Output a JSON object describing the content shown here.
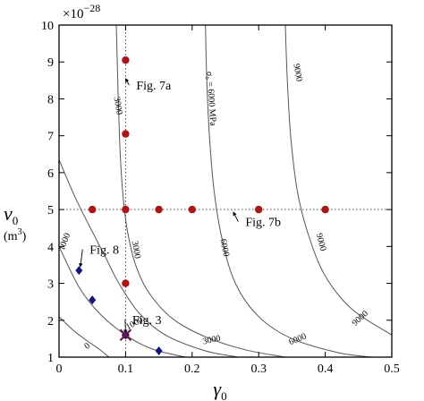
{
  "chart_data": {
    "type": "scatter",
    "title": "",
    "xlabel": "γ",
    "xlabel_sub": "0",
    "ylabel": "v",
    "ylabel_sub": "0",
    "ylabel_unit_open": "(m",
    "ylabel_unit_sup": "3",
    "ylabel_unit_close": ")",
    "y_multiplier": "×10",
    "y_multiplier_exp": "−28",
    "xlim": [
      0,
      0.5
    ],
    "ylim": [
      1,
      10
    ],
    "x_ticks": [
      {
        "value": 0,
        "label": "0"
      },
      {
        "value": 0.1,
        "label": "0.1"
      },
      {
        "value": 0.2,
        "label": "0.2"
      },
      {
        "value": 0.3,
        "label": "0.3"
      },
      {
        "value": 0.4,
        "label": "0.4"
      },
      {
        "value": 0.5,
        "label": "0.5"
      }
    ],
    "y_ticks": [
      {
        "value": 1,
        "label": "1"
      },
      {
        "value": 2,
        "label": "2"
      },
      {
        "value": 3,
        "label": "3"
      },
      {
        "value": 4,
        "label": "4"
      },
      {
        "value": 5,
        "label": "5"
      },
      {
        "value": 6,
        "label": "6"
      },
      {
        "value": 7,
        "label": "7"
      },
      {
        "value": 8,
        "label": "8"
      },
      {
        "value": 9,
        "label": "9"
      },
      {
        "value": 10,
        "label": "10"
      }
    ],
    "grid": false,
    "reference_lines": [
      {
        "orientation": "vertical",
        "value": 0.1,
        "style": "dotted"
      },
      {
        "orientation": "horizontal",
        "value": 5,
        "style": "dotted"
      }
    ],
    "contours": [
      {
        "level": 0,
        "label": "0",
        "points": [
          [
            0.0,
            2.1
          ],
          [
            0.02,
            1.75
          ],
          [
            0.04,
            1.47
          ],
          [
            0.06,
            1.22
          ],
          [
            0.075,
            1.0
          ]
        ],
        "label_at": [
          0.045,
          1.25
        ],
        "label_angle": -42
      },
      {
        "level": 1000,
        "label": "1000",
        "points": [
          [
            0.0,
            4.0
          ],
          [
            0.03,
            2.9
          ],
          [
            0.06,
            2.2
          ],
          [
            0.1,
            1.6
          ],
          [
            0.14,
            1.22
          ],
          [
            0.19,
            1.0
          ]
        ],
        "label_at": [
          0.115,
          1.85
        ],
        "label_angle": -28
      },
      {
        "level": 1000,
        "label": "1000",
        "points": [
          [
            0.0,
            6.35
          ],
          [
            0.025,
            5.3
          ],
          [
            0.05,
            4.4
          ],
          [
            0.07,
            3.7
          ],
          [
            0.09,
            3.0
          ],
          [
            0.12,
            2.2
          ],
          [
            0.16,
            1.6
          ],
          [
            0.22,
            1.17
          ],
          [
            0.27,
            1.0
          ]
        ],
        "label_at": [
          0.012,
          4.1
        ],
        "label_angle": -68
      },
      {
        "level": 3000,
        "label": "3000",
        "points": [
          [
            0.086,
            10.0
          ],
          [
            0.089,
            8.0
          ],
          [
            0.092,
            6.5
          ],
          [
            0.097,
            5.2
          ],
          [
            0.104,
            4.3
          ],
          [
            0.115,
            3.5
          ],
          [
            0.135,
            2.75
          ],
          [
            0.17,
            2.05
          ],
          [
            0.22,
            1.55
          ],
          [
            0.28,
            1.2
          ],
          [
            0.34,
            1.0
          ]
        ],
        "label_at": [
          0.085,
          7.8
        ],
        "label_angle": 80
      },
      {
        "level": 3000,
        "label": "3000",
        "points": [],
        "label_at": [
          0.112,
          3.9
        ],
        "label_angle": 80
      },
      {
        "level": 3000,
        "label": "3000",
        "points": [],
        "label_at": [
          0.23,
          1.4
        ],
        "label_angle": -12
      },
      {
        "level": 6000,
        "label": "σ₀ = 6000 MPa",
        "points": [
          [
            0.22,
            10.0
          ],
          [
            0.222,
            8.5
          ],
          [
            0.226,
            7.0
          ],
          [
            0.233,
            5.5
          ],
          [
            0.245,
            4.2
          ],
          [
            0.265,
            3.0
          ],
          [
            0.3,
            2.1
          ],
          [
            0.35,
            1.5
          ],
          [
            0.42,
            1.12
          ],
          [
            0.47,
            1.0
          ]
        ],
        "label_at": [
          0.225,
          8.0
        ],
        "label_angle": 86
      },
      {
        "level": 6000,
        "label": "6000",
        "points": [],
        "label_at": [
          0.245,
          3.95
        ],
        "label_angle": 78
      },
      {
        "level": 6000,
        "label": "6000",
        "points": [],
        "label_at": [
          0.36,
          1.42
        ],
        "label_angle": -22
      },
      {
        "level": 9000,
        "label": "9000",
        "points": [
          [
            0.34,
            10.0
          ],
          [
            0.343,
            8.5
          ],
          [
            0.348,
            7.0
          ],
          [
            0.358,
            5.5
          ],
          [
            0.375,
            4.3
          ],
          [
            0.4,
            3.2
          ],
          [
            0.44,
            2.3
          ],
          [
            0.5,
            1.6
          ]
        ],
        "label_at": [
          0.355,
          8.7
        ],
        "label_angle": 80
      },
      {
        "level": 9000,
        "label": "9000",
        "points": [],
        "label_at": [
          0.39,
          4.1
        ],
        "label_angle": 75
      },
      {
        "level": 9000,
        "label": "9000",
        "points": [],
        "label_at": [
          0.455,
          2.0
        ],
        "label_angle": -42
      }
    ],
    "series": [
      {
        "marker": "circle",
        "color": "#b21212",
        "points": [
          [
            0.1,
            9.05
          ],
          [
            0.1,
            7.05
          ],
          [
            0.05,
            5.0
          ],
          [
            0.1,
            5.0
          ],
          [
            0.15,
            5.0
          ],
          [
            0.2,
            5.0
          ],
          [
            0.3,
            5.0
          ],
          [
            0.4,
            5.0
          ],
          [
            0.1,
            3.0
          ],
          [
            0.1,
            1.6
          ]
        ]
      },
      {
        "marker": "diamond",
        "color": "#12128a",
        "points": [
          [
            0.03,
            3.35
          ],
          [
            0.05,
            2.55
          ],
          [
            0.1,
            1.6
          ],
          [
            0.15,
            1.17
          ]
        ]
      }
    ],
    "annotations": [
      {
        "text": "Fig. 7a",
        "at": [
          0.108,
          8.25
        ],
        "arrow_to": [
          0.1,
          8.55
        ]
      },
      {
        "text": "Fig. 7b",
        "at": [
          0.272,
          4.55
        ],
        "arrow_to": [
          0.262,
          4.93
        ]
      },
      {
        "text": "Fig. 8",
        "at": [
          0.038,
          3.8
        ],
        "arrow_to": [
          0.032,
          3.45
        ]
      },
      {
        "text": "Fig. 3",
        "at": [
          0.102,
          1.9
        ],
        "arrow_to": [
          0.1,
          1.65
        ]
      }
    ],
    "special_markers": [
      {
        "marker": "cross",
        "color": "#6a1a4a",
        "at": [
          0.1,
          1.6
        ]
      }
    ]
  }
}
